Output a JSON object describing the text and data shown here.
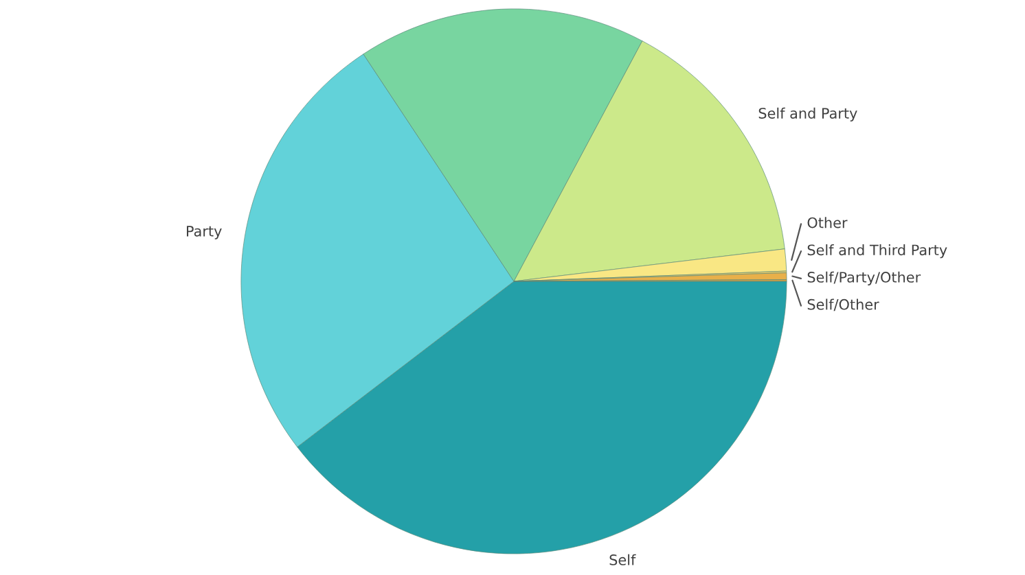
{
  "chart_data": {
    "type": "pie",
    "categories": [
      "Self",
      "Party",
      null,
      "Self and Party",
      "Other",
      "Self and Third Party",
      "Self/Party/Other",
      "Self/Other"
    ],
    "values": [
      39.6,
      26.1,
      17.1,
      15.3,
      1.3,
      0.1,
      0.4,
      0.1
    ],
    "colors": [
      "#24a0a8",
      "#62d2d9",
      "#78d5a0",
      "#cce98a",
      "#f9e784",
      "#f2d06a",
      "#e8b04a",
      "#d9a040"
    ],
    "legend": false
  }
}
